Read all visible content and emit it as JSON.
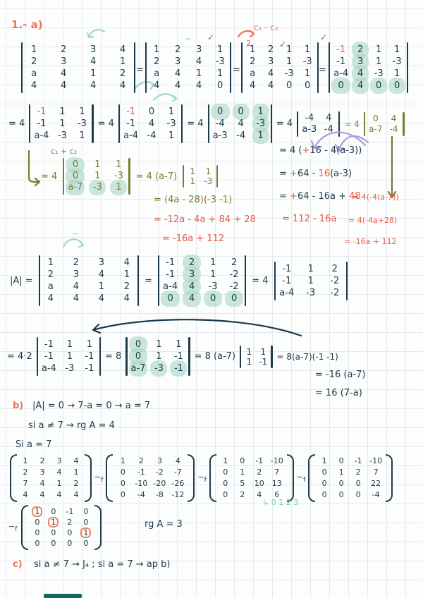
{
  "labels": {
    "title": "1.- a)",
    "eq": "=",
    "eq4": "= 4",
    "eq42": "= 4·2",
    "eq8": "= 8",
    "eq8a7": "= 8 (a-7)",
    "eq4a7": "= 4 (a-7)",
    "detA": "|A| =",
    "c1c2_minus": "c₁ - c₂",
    "c1c2_plus": "c₁ + c₂",
    "check": "✓",
    "dash": "−",
    "res1": "= 8(a-7)(-1 -1)",
    "res2": "= -16 (a-7)",
    "res3": "= 16 (7-a)",
    "ol1_eq": "= ",
    "ol1_lp": "(",
    "ol1_body": "4a - 28",
    "ol1_rp": ")",
    "ol1_tail": "(-3 -1)",
    "ol2": "= -12a - 4a + 84 + 28",
    "ol3": "= -16a + 112",
    "rc1_a": "= 4 (",
    "rc1_plus": "+",
    "rc1_b": "16 - 4(a-3))",
    "rc2_a": "= ",
    "rc2_plus": "+",
    "rc2_b": "64 - ",
    "rc2_r": "16",
    "rc2_c": "(a-3)",
    "rc3_a": "= ",
    "rc3_plus": "+",
    "rc3_b": "64 - 16a + ",
    "rc3_r": "48",
    "rc3_side": "= 4(-4(a-7))",
    "rc4": "= 112 - 16a",
    "rc4_side": "= 4(-4a+28)",
    "rc5": "= -16a + 112",
    "b_label": "b)",
    "b_line1": "|A| = 0  →  7-a = 0  → a = 7",
    "b_line2": "si  a ≠ 7  →  rg A = 4",
    "b_line3": "Si  a = 7",
    "sim": "∼",
    "sim_sub": "f",
    "teal_note": "↳ 0  1  2  3",
    "rg3": "rg A = 3",
    "c_label": "c)",
    "c_line": "si  a ≠ 7  →  J₄   ;   si  a = 7  →  ap  b)"
  },
  "colors": {
    "ink": "#1d3a4a",
    "orange": "#ed7257",
    "red": "#e85c47",
    "olive": "#73802e",
    "teal": "#9ed9c8",
    "highlight": "#a8d6c5",
    "purple": "#b197dc",
    "bottom_bar": "#11695d"
  },
  "matrices": {
    "d1": {
      "delim": "bar",
      "rows": [
        [
          "1",
          "2",
          "3",
          "4"
        ],
        [
          "2",
          "3",
          "4",
          "1"
        ],
        [
          "a",
          "4",
          "1",
          "2"
        ],
        [
          "4",
          "4",
          "4",
          "4"
        ]
      ]
    },
    "d2": {
      "delim": "bar",
      "rows": [
        [
          "1",
          "2",
          "3",
          "1"
        ],
        [
          "2",
          "3",
          "4",
          "-3"
        ],
        [
          "a",
          "4",
          "1",
          "1"
        ],
        [
          "4",
          "4",
          "4",
          "0"
        ]
      ]
    },
    "d3": {
      "delim": "bar",
      "rows": [
        [
          "1",
          "2",
          "1",
          "1"
        ],
        [
          "2",
          "3",
          "1",
          "-3"
        ],
        [
          "a",
          "4",
          "-3",
          "1"
        ],
        [
          "4",
          "4",
          "0",
          "0"
        ]
      ],
      "overlay": {
        "r": 0,
        "c": 0,
        "text": "2"
      }
    },
    "d4": {
      "delim": "bar",
      "rows": [
        [
          "-1",
          "2",
          "1",
          "1"
        ],
        [
          "-1",
          "3",
          "1",
          "-3"
        ],
        [
          "a-4",
          "4",
          "-3",
          "1"
        ],
        [
          "0",
          "4",
          "0",
          "0"
        ]
      ],
      "red": [
        [
          0,
          0
        ]
      ],
      "hl_cols": [
        1
      ],
      "hl_rows": [
        3
      ]
    },
    "t1": {
      "delim": "bar",
      "rows": [
        [
          "-1",
          "1",
          "1"
        ],
        [
          "-1",
          "1",
          "-3"
        ],
        [
          "a-4",
          "-3",
          "1"
        ]
      ],
      "red": [
        [
          0,
          0
        ]
      ]
    },
    "t2": {
      "delim": "bar",
      "rows": [
        [
          "-1",
          "0",
          "1"
        ],
        [
          "-1",
          "4",
          "-3"
        ],
        [
          "a-4",
          "-4",
          "1"
        ]
      ],
      "red": [
        [
          0,
          0
        ]
      ]
    },
    "t3": {
      "delim": "bar",
      "rows": [
        [
          "0",
          "0",
          "1"
        ],
        [
          "-4",
          "4",
          "-3"
        ],
        [
          "a-3",
          "-4",
          "1"
        ]
      ],
      "hl_rows": [
        0
      ],
      "hl_cols": [
        2
      ]
    },
    "t4": {
      "delim": "bar",
      "rows": [
        [
          "-4",
          "4"
        ],
        [
          "a-3",
          "-4"
        ]
      ]
    },
    "t5": {
      "delim": "bar",
      "rows": [
        [
          "0",
          "4"
        ],
        [
          "a-7",
          "-4"
        ]
      ]
    },
    "f3": {
      "delim": "bar",
      "rows": [
        [
          "0",
          "1",
          "1"
        ],
        [
          "0",
          "1",
          "-3"
        ],
        [
          "a-7",
          "-3",
          "1"
        ]
      ],
      "hl_cols": [
        0
      ],
      "hl_rows": [
        2
      ]
    },
    "g2": {
      "delim": "bar",
      "rows": [
        [
          "1",
          "1"
        ],
        [
          "1",
          "-3"
        ]
      ]
    },
    "h4": {
      "delim": "bar",
      "rows": [
        [
          "1",
          "2",
          "3",
          "4"
        ],
        [
          "2",
          "3",
          "4",
          "1"
        ],
        [
          "a",
          "4",
          "1",
          "2"
        ],
        [
          "4",
          "4",
          "4",
          "4"
        ]
      ]
    },
    "i4": {
      "delim": "bar",
      "rows": [
        [
          "-1",
          "2",
          "1",
          "2"
        ],
        [
          "-1",
          "3",
          "1",
          "-2"
        ],
        [
          "a-4",
          "4",
          "-3",
          "-2"
        ],
        [
          "0",
          "4",
          "0",
          "0"
        ]
      ],
      "hl_cols": [
        1
      ],
      "hl_rows": [
        3
      ]
    },
    "j3": {
      "delim": "bar",
      "rows": [
        [
          "-1",
          "1",
          "2"
        ],
        [
          "-1",
          "1",
          "-2"
        ],
        [
          "a-4",
          "-3",
          "-2"
        ]
      ]
    },
    "k3": {
      "delim": "bar",
      "rows": [
        [
          "-1",
          "1",
          "1"
        ],
        [
          "-1",
          "1",
          "-1"
        ],
        [
          "a-4",
          "-3",
          "-1"
        ]
      ]
    },
    "l3": {
      "delim": "bar",
      "rows": [
        [
          "0",
          "1",
          "1"
        ],
        [
          "0",
          "1",
          "-1"
        ],
        [
          "a-7",
          "-3",
          "-1"
        ]
      ],
      "hl_cols": [
        0
      ],
      "hl_rows": [
        2
      ]
    },
    "m2": {
      "delim": "bar",
      "rows": [
        [
          "1",
          "1"
        ],
        [
          "1",
          "-1"
        ]
      ]
    },
    "p1": {
      "delim": "paren",
      "rows": [
        [
          "1",
          "2",
          "3",
          "4"
        ],
        [
          "2",
          "3",
          "4",
          "1"
        ],
        [
          "7",
          "4",
          "1",
          "2"
        ],
        [
          "4",
          "4",
          "4",
          "4"
        ]
      ]
    },
    "p2": {
      "delim": "paren",
      "rows": [
        [
          "1",
          "2",
          "3",
          "4"
        ],
        [
          "0",
          "-1",
          "-2",
          "-7"
        ],
        [
          "0",
          "-10",
          "-20",
          "-26"
        ],
        [
          "0",
          "-4",
          "-8",
          "-12"
        ]
      ]
    },
    "p3": {
      "delim": "paren",
      "rows": [
        [
          "1",
          "0",
          "-1",
          "-10"
        ],
        [
          "0",
          "1",
          "2",
          "7"
        ],
        [
          "0",
          "5",
          "10",
          "13"
        ],
        [
          "0",
          "2",
          "4",
          "6"
        ]
      ]
    },
    "p4": {
      "delim": "paren",
      "rows": [
        [
          "1",
          "0",
          "-1",
          "-10"
        ],
        [
          "0",
          "1",
          "2",
          "7"
        ],
        [
          "0",
          "0",
          "0",
          "22"
        ],
        [
          "0",
          "0",
          "0",
          "-4"
        ]
      ]
    },
    "p5": {
      "delim": "paren",
      "rows": [
        [
          "1",
          "0",
          "-1",
          "0"
        ],
        [
          "0",
          "1",
          "2",
          "0"
        ],
        [
          "0",
          "0",
          "0",
          "1"
        ],
        [
          "0",
          "0",
          "0",
          "0"
        ]
      ],
      "boxed": [
        [
          0,
          0
        ],
        [
          1,
          1
        ],
        [
          2,
          3
        ]
      ]
    }
  }
}
